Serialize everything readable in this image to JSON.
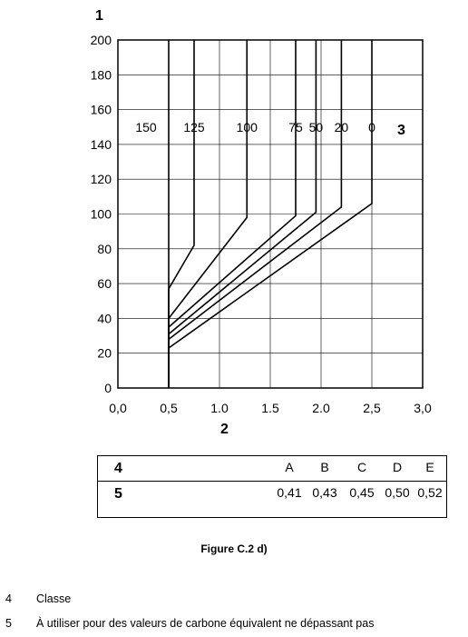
{
  "chart_data": {
    "type": "line",
    "marker_1": "1",
    "marker_2": "2",
    "marker_3": "3",
    "x_ticks": [
      "0,0",
      "0,5",
      "1.0",
      "1.5",
      "2.0",
      "2,5",
      "3,0"
    ],
    "y_ticks": [
      "0",
      "20",
      "40",
      "60",
      "80",
      "100",
      "120",
      "140",
      "160",
      "180",
      "200"
    ],
    "xlim": [
      0,
      3
    ],
    "ylim": [
      0,
      200
    ],
    "grid": true,
    "series": [
      {
        "name": "150",
        "x": [
          0.5,
          0.5
        ],
        "y": [
          0,
          200
        ]
      },
      {
        "name": "125",
        "x": [
          0.5,
          0.5,
          0.75,
          0.75
        ],
        "y": [
          0,
          57,
          82,
          200
        ]
      },
      {
        "name": "100",
        "x": [
          0.5,
          0.5,
          1.27,
          1.27
        ],
        "y": [
          0,
          40,
          98,
          200
        ]
      },
      {
        "name": "75",
        "x": [
          0.5,
          0.5,
          1.75,
          1.75
        ],
        "y": [
          0,
          35,
          99,
          200
        ]
      },
      {
        "name": "50",
        "x": [
          0.5,
          0.5,
          1.95,
          1.95
        ],
        "y": [
          0,
          31,
          101,
          200
        ]
      },
      {
        "name": "20",
        "x": [
          0.5,
          0.5,
          2.2,
          2.2
        ],
        "y": [
          0,
          28,
          104,
          200
        ]
      },
      {
        "name": "0",
        "x": [
          0.5,
          0.5,
          2.5,
          2.5
        ],
        "y": [
          0,
          23,
          106,
          200
        ]
      }
    ]
  },
  "table": {
    "row1_key": "4",
    "row2_key": "5",
    "classes": [
      "A",
      "B",
      "C",
      "D",
      "E"
    ],
    "values": [
      "0,41",
      "0,43",
      "0,45",
      "0,50",
      "0,52"
    ]
  },
  "caption": "Figure C.2 d)",
  "notes": [
    {
      "num": "4",
      "text": "Classe"
    },
    {
      "num": "5",
      "text": "À utiliser pour des valeurs de carbone équivalent ne dépassant pas"
    }
  ]
}
